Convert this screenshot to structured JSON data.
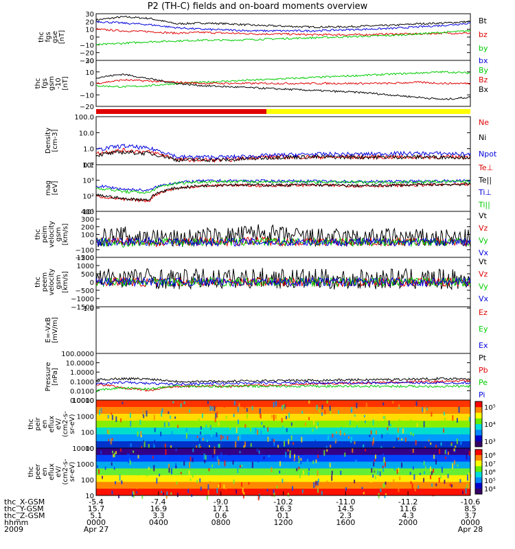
{
  "title": "P2 (TH-C) fields and on-board moments overview",
  "chart_data": [
    {
      "type": "line",
      "panel_id": "fgs-gse",
      "ylabel": [
        "thc",
        "fgs",
        "gse",
        "[nT]"
      ],
      "ylim": [
        -30,
        30
      ],
      "yticks": [
        "30",
        "20",
        "10",
        "0",
        "−10",
        "−20",
        "−30"
      ],
      "series": [
        {
          "name": "Bt",
          "color": "#000000",
          "values": [
            22,
            26,
            24,
            17,
            18,
            17,
            15,
            14,
            13,
            13,
            14,
            15,
            17,
            18,
            20
          ]
        },
        {
          "name": "bz",
          "color": "#e00000",
          "values": [
            10,
            8,
            7,
            5,
            6,
            5,
            4,
            4,
            3,
            3,
            3,
            4,
            4,
            5,
            5
          ]
        },
        {
          "name": "by",
          "color": "#00cc00",
          "values": [
            -10,
            -8,
            -6,
            -5,
            -4,
            -4,
            -3,
            -2,
            -1,
            0,
            1,
            2,
            4,
            6,
            8
          ]
        },
        {
          "name": "bx",
          "color": "#0000dd",
          "values": [
            20,
            18,
            16,
            12,
            10,
            9,
            8,
            8,
            8,
            9,
            10,
            11,
            13,
            15,
            18
          ]
        }
      ]
    },
    {
      "type": "line",
      "panel_id": "fgs-gsm",
      "ylabel": [
        "thc",
        "fgs",
        "gsm",
        "-10",
        "[nT]"
      ],
      "ylim": [
        -20,
        20
      ],
      "yticks": [
        "20",
        "10",
        "0",
        "−10",
        "−20"
      ],
      "series": [
        {
          "name": "By",
          "color": "#00cc00",
          "values": [
            -2,
            -3,
            -2,
            0,
            1,
            2,
            3,
            4,
            5,
            6,
            7,
            8,
            9,
            10,
            9
          ]
        },
        {
          "name": "Bz",
          "color": "#e00000",
          "values": [
            0,
            3,
            2,
            1,
            0,
            0,
            0,
            0,
            0,
            0,
            0,
            0,
            1,
            0,
            0
          ]
        },
        {
          "name": "Bx",
          "color": "#000000",
          "values": [
            5,
            8,
            4,
            0,
            -2,
            -3,
            -4,
            -5,
            -6,
            -7,
            -8,
            -10,
            -12,
            -14,
            -12
          ]
        }
      ]
    },
    {
      "type": "line",
      "panel_id": "density",
      "ylabel": [
        "Density",
        "[cm-3]"
      ],
      "scale": "log",
      "ylim": [
        0.1,
        100
      ],
      "yticks": [
        "100.0",
        "10.0",
        "1.0",
        "0.1"
      ],
      "series": [
        {
          "name": "Ne",
          "color": "#e00000",
          "values": [
            0.5,
            0.8,
            0.6,
            0.2,
            0.2,
            0.2,
            0.3,
            0.3,
            0.3,
            0.3,
            0.3,
            0.3,
            0.3,
            0.3,
            0.3
          ]
        },
        {
          "name": "Ni",
          "color": "#000000",
          "values": [
            0.4,
            0.6,
            0.5,
            0.2,
            0.2,
            0.2,
            0.25,
            0.3,
            0.3,
            0.3,
            0.3,
            0.3,
            0.3,
            0.3,
            0.3
          ]
        },
        {
          "name": "Npot",
          "color": "#0000dd",
          "values": [
            0.8,
            1.5,
            1.0,
            0.3,
            0.3,
            0.3,
            0.35,
            0.4,
            0.45,
            0.45,
            0.45,
            0.5,
            0.5,
            0.5,
            0.45
          ]
        }
      ]
    },
    {
      "type": "line",
      "panel_id": "temperature",
      "ylabel": [
        "mag",
        "[eV]"
      ],
      "scale": "log",
      "ylim": [
        10,
        100000
      ],
      "yticks": [
        "10⁴",
        "10³",
        "10²",
        "10¹"
      ],
      "series": [
        {
          "name": "Te⊥",
          "color": "#e00000",
          "values": [
            200,
            100,
            80,
            900,
            1500,
            1800,
            1600,
            1700,
            1800,
            1600,
            1500,
            1600,
            1800,
            1900,
            2000
          ]
        },
        {
          "name": "Te||",
          "color": "#000000",
          "values": [
            250,
            120,
            100,
            1000,
            1600,
            2000,
            1800,
            1800,
            1900,
            1700,
            1600,
            1700,
            1900,
            2000,
            2100
          ]
        },
        {
          "name": "Ti⊥",
          "color": "#0000dd",
          "values": [
            1500,
            800,
            600,
            3000,
            4000,
            4200,
            4000,
            4000,
            3800,
            3600,
            3500,
            3600,
            3800,
            4000,
            4200
          ]
        },
        {
          "name": "Ti||",
          "color": "#00cc00",
          "values": [
            1000,
            500,
            400,
            2500,
            3500,
            3600,
            3500,
            3400,
            3300,
            3200,
            3100,
            3200,
            3300,
            3500,
            3600
          ]
        }
      ]
    },
    {
      "type": "line",
      "panel_id": "peim-velocity",
      "ylabel": [
        "thc",
        "peim",
        "velocity",
        "gsm",
        "[km/s]"
      ],
      "ylim": [
        -200,
        400
      ],
      "yticks": [
        "400",
        "300",
        "200",
        "100",
        "0",
        "−100",
        "−200"
      ],
      "series": [
        {
          "name": "Vt",
          "color": "#000000",
          "values": [
            50,
            80,
            60,
            40,
            60,
            70,
            120,
            80,
            60,
            50,
            50,
            60,
            50,
            45,
            40
          ]
        },
        {
          "name": "Vz",
          "color": "#e00000",
          "values": [
            0,
            10,
            -10,
            0,
            10,
            0,
            20,
            0,
            0,
            0,
            0,
            0,
            0,
            0,
            0
          ]
        },
        {
          "name": "Vy",
          "color": "#00cc00",
          "values": [
            0,
            -20,
            0,
            0,
            0,
            0,
            0,
            0,
            0,
            0,
            0,
            0,
            0,
            0,
            0
          ]
        },
        {
          "name": "Vx",
          "color": "#0000dd",
          "values": [
            0,
            0,
            10,
            0,
            0,
            0,
            0,
            0,
            0,
            0,
            0,
            0,
            0,
            0,
            0
          ]
        }
      ]
    },
    {
      "type": "line",
      "panel_id": "peem-velocity",
      "ylabel": [
        "thc",
        "peem",
        "velocity",
        "gsm",
        "[km/s]"
      ],
      "ylim": [
        -1500,
        1500
      ],
      "yticks": [
        "1500",
        "1000",
        "500",
        "0",
        "−500",
        "−1000",
        "−1500"
      ],
      "series": [
        {
          "name": "Vt",
          "color": "#000000",
          "values": [
            200,
            300,
            250,
            150,
            200,
            200,
            250,
            200,
            180,
            150,
            150,
            200,
            160,
            150,
            140
          ]
        },
        {
          "name": "Vz",
          "color": "#e00000",
          "values": [
            0,
            50,
            -50,
            0,
            20,
            0,
            30,
            0,
            0,
            0,
            0,
            0,
            0,
            0,
            0
          ]
        },
        {
          "name": "Vy",
          "color": "#00cc00",
          "values": [
            0,
            -30,
            0,
            0,
            0,
            0,
            0,
            0,
            0,
            0,
            0,
            0,
            0,
            0,
            0
          ]
        },
        {
          "name": "Vx",
          "color": "#0000dd",
          "values": [
            0,
            0,
            30,
            0,
            0,
            0,
            0,
            0,
            0,
            0,
            0,
            0,
            0,
            0,
            0
          ]
        }
      ]
    },
    {
      "type": "line",
      "panel_id": "efield",
      "ylabel": [
        "E=-VxB",
        "[mV/m]"
      ],
      "ylim": [
        null,
        1
      ],
      "yticks": [
        "1.0"
      ],
      "series": [
        {
          "name": "Ez",
          "color": "#e00000",
          "values": []
        },
        {
          "name": "Ey",
          "color": "#00cc00",
          "values": []
        },
        {
          "name": "Ex",
          "color": "#0000dd",
          "values": []
        }
      ]
    },
    {
      "type": "line",
      "panel_id": "pressure",
      "ylabel": [
        "Pressure",
        "[nPa]"
      ],
      "scale": "log",
      "ylim": [
        0.001,
        100
      ],
      "yticks": [
        "100.0000",
        "10.0000",
        "1.0000",
        "0.1000",
        "0.0100",
        "0.0010"
      ],
      "series": [
        {
          "name": "Pt",
          "color": "#000000",
          "values": [
            0.15,
            0.2,
            0.18,
            0.1,
            0.1,
            0.1,
            0.12,
            0.12,
            0.13,
            0.14,
            0.15,
            0.16,
            0.18,
            0.2,
            0.2
          ]
        },
        {
          "name": "Pb",
          "color": "#e00000",
          "values": [
            0.05,
            0.02,
            0.01,
            0.03,
            0.03,
            0.03,
            0.04,
            0.04,
            0.05,
            0.06,
            0.07,
            0.08,
            0.09,
            0.1,
            0.12
          ]
        },
        {
          "name": "Pe",
          "color": "#00cc00",
          "values": [
            0.01,
            0.02,
            0.015,
            0.03,
            0.03,
            0.03,
            0.03,
            0.03,
            0.03,
            0.03,
            0.03,
            0.03,
            0.03,
            0.03,
            0.03
          ]
        },
        {
          "name": "Pi",
          "color": "#0000dd",
          "values": [
            0.05,
            0.08,
            0.06,
            0.05,
            0.06,
            0.06,
            0.07,
            0.07,
            0.07,
            0.07,
            0.07,
            0.07,
            0.07,
            0.07,
            0.07
          ]
        }
      ]
    },
    {
      "type": "heatmap",
      "panel_id": "peir-spectrogram",
      "ylabel": [
        "thc",
        "peir",
        "en",
        "eflux",
        "eV/",
        "(cm2-s-",
        "sr-eV)"
      ],
      "scale": "log",
      "ylim": [
        10,
        20000
      ],
      "yticks": [
        "10000",
        "1000",
        "100",
        "10"
      ],
      "colorbar_ticks": [
        "10⁵",
        "10⁴",
        "10³"
      ]
    },
    {
      "type": "heatmap",
      "panel_id": "peer-spectrogram",
      "ylabel": [
        "thc",
        "peer",
        "en",
        "eflux",
        "eV/",
        "(cm2-s-",
        "sr-eV)"
      ],
      "scale": "log",
      "ylim": [
        10,
        20000
      ],
      "yticks": [
        "10000",
        "1000",
        "100",
        "10"
      ],
      "colorbar_ticks": [
        "10⁸",
        "10⁷",
        "10⁶",
        "10⁵",
        "10⁴"
      ]
    }
  ],
  "bottom_axis": {
    "row_labels": [
      "thc_X-GSM",
      "thc_Y-GSM",
      "thc_Z-GSM",
      "hhmm",
      "2009"
    ],
    "columns": [
      {
        "values": [
          "-5.4",
          "15.7",
          "5.1",
          "0000",
          "Apr 27"
        ]
      },
      {
        "values": [
          "-7.4",
          "16.9",
          "3.3",
          "0400",
          ""
        ]
      },
      {
        "values": [
          "-9.0",
          "17.1",
          "0.6",
          "0800",
          ""
        ]
      },
      {
        "values": [
          "-10.2",
          "16.3",
          "0.1",
          "1200",
          ""
        ]
      },
      {
        "values": [
          "-11.0",
          "14.5",
          "2.3",
          "1600",
          ""
        ]
      },
      {
        "values": [
          "-11.2",
          "11.6",
          "4.3",
          "2000",
          ""
        ]
      },
      {
        "values": [
          "-10.6",
          "8.5",
          "3.7",
          "0000",
          "Apr 28"
        ]
      }
    ]
  },
  "colors": {
    "red": "#e00000",
    "green": "#00cc00",
    "blue": "#0000dd",
    "yellow": "#ffff00"
  }
}
